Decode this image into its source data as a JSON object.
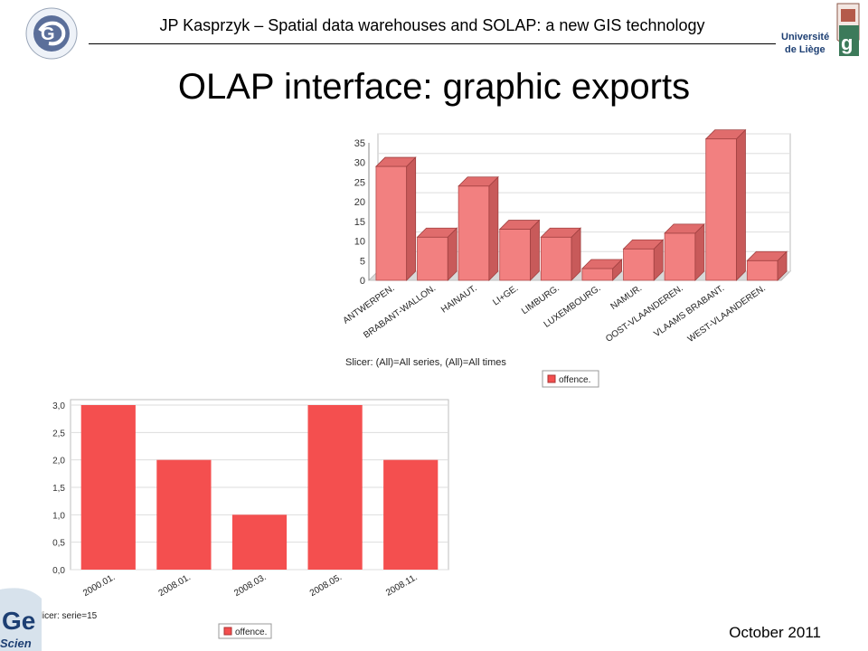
{
  "header": {
    "text": "JP Kasprzyk – Spatial data warehouses and SOLAP: a new GIS technology"
  },
  "title": "OLAP interface: graphic exports",
  "footer": {
    "date": "October 2011"
  },
  "logos": {
    "left": "geomatics-unit-logo",
    "right": "universite-de-liege-logo",
    "right_text": [
      "Université",
      "de Liège"
    ],
    "bottom": "geo-science-logo"
  },
  "colors": {
    "bar3d": "#f28080",
    "bar3d_side": "#c85a5a",
    "bar3d_top": "#e06c6c",
    "bar2d": "#f44f4f",
    "grid": "#dddddd"
  },
  "chart_data": [
    {
      "type": "bar",
      "style": "3d",
      "categories": [
        "ANTWERPEN.",
        "BRABANT-WALLON.",
        "HAINAUT.",
        "LI+GE.",
        "LIMBURG.",
        "LUXEMBOURG.",
        "NAMUR.",
        "OOST-VLAANDEREN.",
        "VLAAMS BRABANT.",
        "WEST-VLAANDEREN."
      ],
      "series": [
        {
          "name": "offence.",
          "values": [
            29,
            11,
            24,
            13,
            11,
            3,
            8,
            12,
            36,
            5
          ]
        }
      ],
      "yticks": [
        "0",
        "5",
        "10",
        "15",
        "20",
        "25",
        "30",
        "35"
      ],
      "ylim": [
        0,
        35
      ],
      "grid": true,
      "legend": "bottom",
      "slicer": "Slicer: (All)=All series, (All)=All times"
    },
    {
      "type": "bar",
      "style": "2d",
      "categories": [
        "2000.01.",
        "2008.01.",
        "2008.03.",
        "2008.05.",
        "2008.11."
      ],
      "series": [
        {
          "name": "offence.",
          "values": [
            3,
            2,
            1,
            3,
            2
          ]
        }
      ],
      "yticks": [
        "0,0",
        "0,5",
        "1,0",
        "1,5",
        "2,0",
        "2,5",
        "3,0"
      ],
      "ylim": [
        0,
        3
      ],
      "grid": true,
      "legend": "bottom",
      "slicer": "Slicer: serie=15"
    }
  ]
}
